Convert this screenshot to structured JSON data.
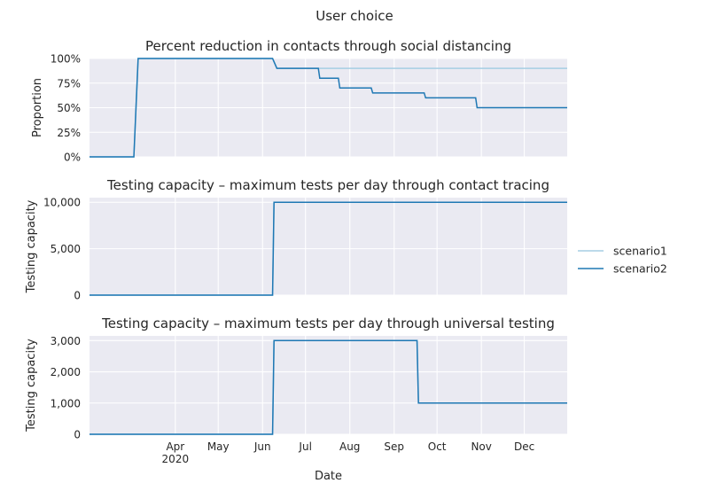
{
  "figure": {
    "suptitle": "User choice"
  },
  "colors": {
    "scenario1": "#a6cee3",
    "scenario2": "#1f78b4",
    "panel_bg": "#eaeaf2",
    "grid": "#ffffff"
  },
  "legend": {
    "placement": "center-right",
    "entries": [
      "scenario1",
      "scenario2"
    ]
  },
  "chart_data": [
    {
      "type": "line",
      "title": "Percent reduction in contacts through social distancing",
      "xlabel": "",
      "ylabel": "Proportion",
      "xlim": [
        "2020-02-01",
        "2020-12-31"
      ],
      "ylim": [
        0,
        1
      ],
      "yticks": [
        0,
        0.25,
        0.5,
        0.75,
        1.0
      ],
      "ytick_labels": [
        "0%",
        "25%",
        "50%",
        "75%",
        "100%"
      ],
      "grid": true,
      "series": [
        {
          "name": "scenario1",
          "x": [
            "2020-02-01",
            "2020-03-03",
            "2020-03-06",
            "2020-06-08",
            "2020-06-11",
            "2020-12-31"
          ],
          "y": [
            0,
            0,
            1.0,
            1.0,
            0.9,
            0.9
          ]
        },
        {
          "name": "scenario2",
          "x": [
            "2020-02-01",
            "2020-03-03",
            "2020-03-06",
            "2020-06-08",
            "2020-06-11",
            "2020-07-10",
            "2020-07-11",
            "2020-07-24",
            "2020-07-25",
            "2020-08-16",
            "2020-08-17",
            "2020-09-22",
            "2020-09-23",
            "2020-10-28",
            "2020-10-29",
            "2020-12-31"
          ],
          "y": [
            0,
            0,
            1.0,
            1.0,
            0.9,
            0.9,
            0.8,
            0.8,
            0.7,
            0.7,
            0.65,
            0.65,
            0.6,
            0.6,
            0.5,
            0.5
          ]
        }
      ]
    },
    {
      "type": "line",
      "title": "Testing capacity – maximum tests per day through contact tracing",
      "xlabel": "",
      "ylabel": "Testing capacity",
      "xlim": [
        "2020-02-01",
        "2020-12-31"
      ],
      "ylim": [
        0,
        10500
      ],
      "yticks": [
        0,
        5000,
        10000
      ],
      "ytick_labels": [
        "0",
        "5,000",
        "10,000"
      ],
      "grid": true,
      "series": [
        {
          "name": "scenario1",
          "x": [
            "2020-02-01",
            "2020-06-08",
            "2020-06-09",
            "2020-12-31"
          ],
          "y": [
            0,
            0,
            10000,
            10000
          ]
        },
        {
          "name": "scenario2",
          "x": [
            "2020-02-01",
            "2020-06-08",
            "2020-06-09",
            "2020-12-31"
          ],
          "y": [
            0,
            0,
            10000,
            10000
          ]
        }
      ]
    },
    {
      "type": "line",
      "title": "Testing capacity – maximum tests per day through universal testing",
      "xlabel": "Date",
      "ylabel": "Testing capacity",
      "xlim": [
        "2020-02-01",
        "2020-12-31"
      ],
      "ylim": [
        0,
        3150
      ],
      "yticks": [
        0,
        1000,
        2000,
        3000
      ],
      "ytick_labels": [
        "0",
        "1,000",
        "2,000",
        "3,000"
      ],
      "xticks": [
        "2020-04-01",
        "2020-05-01",
        "2020-06-01",
        "2020-07-01",
        "2020-08-01",
        "2020-09-01",
        "2020-10-01",
        "2020-11-01",
        "2020-12-01"
      ],
      "xtick_labels": [
        "Apr\n2020",
        "May",
        "Jun",
        "Jul",
        "Aug",
        "Sep",
        "Oct",
        "Nov",
        "Dec"
      ],
      "grid": true,
      "series": [
        {
          "name": "scenario1",
          "x": [
            "2020-02-01",
            "2020-06-08",
            "2020-06-09",
            "2020-09-17",
            "2020-09-18",
            "2020-12-31"
          ],
          "y": [
            0,
            0,
            3000,
            3000,
            1000,
            1000
          ]
        },
        {
          "name": "scenario2",
          "x": [
            "2020-02-01",
            "2020-06-08",
            "2020-06-09",
            "2020-09-17",
            "2020-09-18",
            "2020-12-31"
          ],
          "y": [
            0,
            0,
            3000,
            3000,
            1000,
            1000
          ]
        }
      ]
    }
  ]
}
